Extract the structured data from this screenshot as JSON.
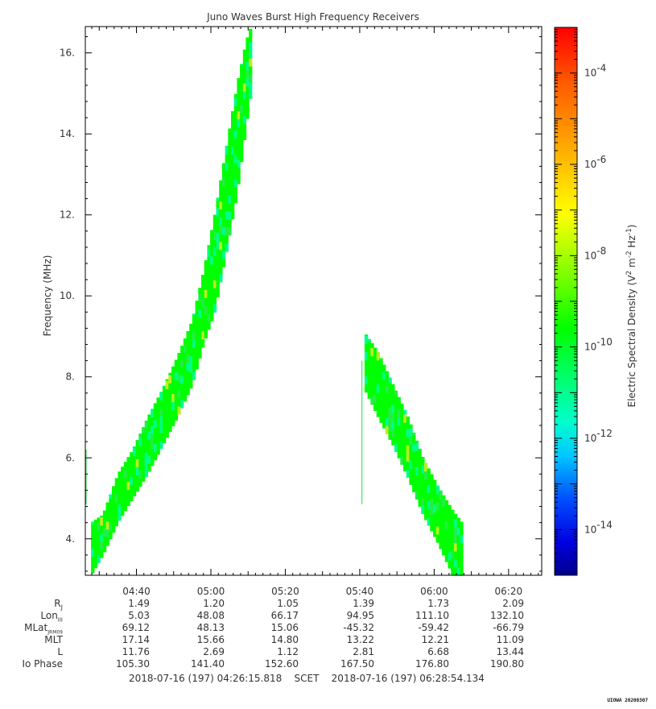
{
  "chart_data": {
    "type": "heatmap",
    "title": "Juno Waves Burst High Frequency Receivers",
    "ylabel": "Frequency (MHz)",
    "xlabel": "SCET",
    "ylim": [
      3.1,
      16.65
    ],
    "y_ticks": [
      "4.",
      "6.",
      "8.",
      "10.",
      "12.",
      "14.",
      "16."
    ],
    "y_tick_values": [
      4,
      6,
      8,
      10,
      12,
      14,
      16
    ],
    "x_range_minutes": [
      266.26,
      388.9
    ],
    "x_ticks": [
      "04:40",
      "05:00",
      "05:20",
      "05:40",
      "06:00",
      "06:20"
    ],
    "x_tick_minutes": [
      280,
      300,
      320,
      340,
      360,
      380
    ],
    "color_scale": "log",
    "colorbar_label": "Electric Spectral Density (V^2 m^-2 Hz^-1)",
    "colorbar_range": [
      1e-15,
      0.001
    ],
    "colorbar_ticks": [
      "-4",
      "-6",
      "-8",
      "-10",
      "-12",
      "-14"
    ],
    "colorbar_tick_exponents": [
      -4,
      -6,
      -8,
      -10,
      -12,
      -14
    ],
    "colorbar_colors": [
      "#ff0000",
      "#ff7f00",
      "#ffff00",
      "#7fff00",
      "#00ff00",
      "#00ff7f",
      "#00ffff",
      "#0080ff",
      "#0000ff",
      "#00008b"
    ],
    "emission_bands": [
      {
        "name": "",
        "points": [
          [
            267.8,
            3.1,
            4.4
          ],
          [
            271,
            3.6,
            4.6
          ],
          [
            275,
            4.4,
            5.6
          ],
          [
            279,
            5.0,
            6.2
          ],
          [
            283,
            5.6,
            7.0
          ],
          [
            287,
            6.3,
            7.7
          ],
          [
            291,
            7.0,
            8.5
          ],
          [
            295,
            7.8,
            9.4
          ],
          [
            298,
            8.8,
            10.6
          ],
          [
            301,
            9.6,
            12.0
          ],
          [
            304,
            11.0,
            13.6
          ],
          [
            307,
            12.5,
            15.2
          ],
          [
            309.5,
            14.2,
            16.3
          ],
          [
            310.8,
            15.0,
            16.65
          ]
        ]
      },
      {
        "name": "",
        "points": [
          [
            341.3,
            7.7,
            9.1
          ],
          [
            345,
            7.0,
            8.6
          ],
          [
            349,
            6.3,
            7.8
          ],
          [
            353,
            5.5,
            7.0
          ],
          [
            357,
            4.6,
            6.0
          ],
          [
            361,
            3.9,
            5.3
          ],
          [
            365,
            3.1,
            4.7
          ],
          [
            367.5,
            3.1,
            4.4
          ]
        ]
      }
    ],
    "hotspot_color": "#bbee22",
    "ephemeris_rows": [
      {
        "label": "Rj",
        "values": [
          "1.49",
          "1.20",
          "1.05",
          "1.39",
          "1.73",
          "2.09"
        ]
      },
      {
        "label": "LonIII",
        "values": [
          "5.03",
          "48.08",
          "66.17",
          "94.95",
          "111.10",
          "132.10"
        ]
      },
      {
        "label": "MLatJRM09",
        "values": [
          "69.12",
          "48.13",
          "15.06",
          "-45.32",
          "-59.42",
          "-66.79"
        ]
      },
      {
        "label": "MLT",
        "values": [
          "17.14",
          "15.66",
          "14.80",
          "13.22",
          "12.21",
          "11.09"
        ]
      },
      {
        "label": "L",
        "values": [
          "11.76",
          "2.69",
          "1.12",
          "2.81",
          "6.68",
          "13.44"
        ]
      },
      {
        "label": "Io Phase",
        "values": [
          "105.30",
          "141.40",
          "152.60",
          "167.50",
          "176.80",
          "190.80"
        ]
      }
    ]
  },
  "eph_labels": {
    "rj_main": "R",
    "rj_sub": "J",
    "lon_main": "Lon",
    "lon_sub": "III",
    "mlat_main": "MLat",
    "mlat_sub": "JRM09",
    "mlt": "MLT",
    "l": "L",
    "io": "Io Phase"
  },
  "scet_line": "2018-07-16 (197) 04:26:15.818    SCET    2018-07-16 (197) 06:28:54.134",
  "title": "Juno Waves Burst High Frequency Receivers",
  "ylabel": "Frequency (MHz)",
  "colorbar_label_main": "Electric Spectral Density (V",
  "colorbar_label_sup1": "2",
  "colorbar_label_mid": " m",
  "colorbar_label_sup2": "-2",
  "colorbar_label_mid2": " Hz",
  "colorbar_label_sup3": "-1",
  "colorbar_label_end": ")",
  "colorbar_base": "10",
  "stamp": "UIOWA 20200307"
}
